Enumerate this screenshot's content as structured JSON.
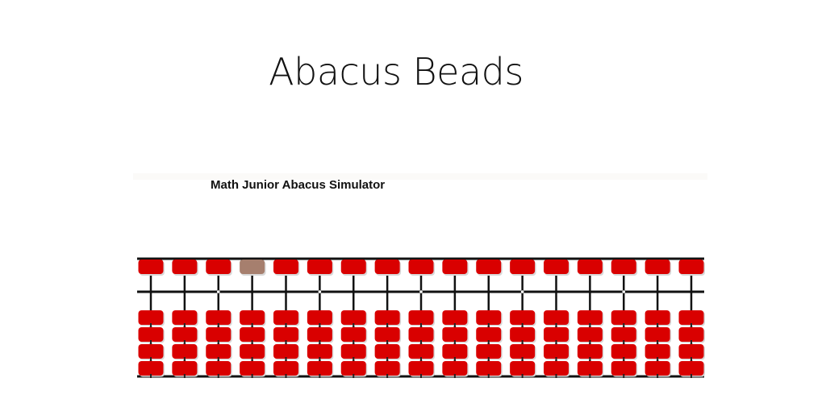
{
  "slide": {
    "title": "Abacus Beads"
  },
  "app": {
    "title": "Math Junior Abacus Simulator"
  },
  "abacus": {
    "rods": 17,
    "upper_beads_per_rod": 1,
    "lower_beads_per_rod": 4,
    "bead_color": "#d90000",
    "highlighted_bead_color": "#a67f6e",
    "highlighted_upper_rod": 4,
    "dot_rods": [
      3,
      6,
      9,
      12,
      15
    ],
    "frame_color": "#111111"
  }
}
